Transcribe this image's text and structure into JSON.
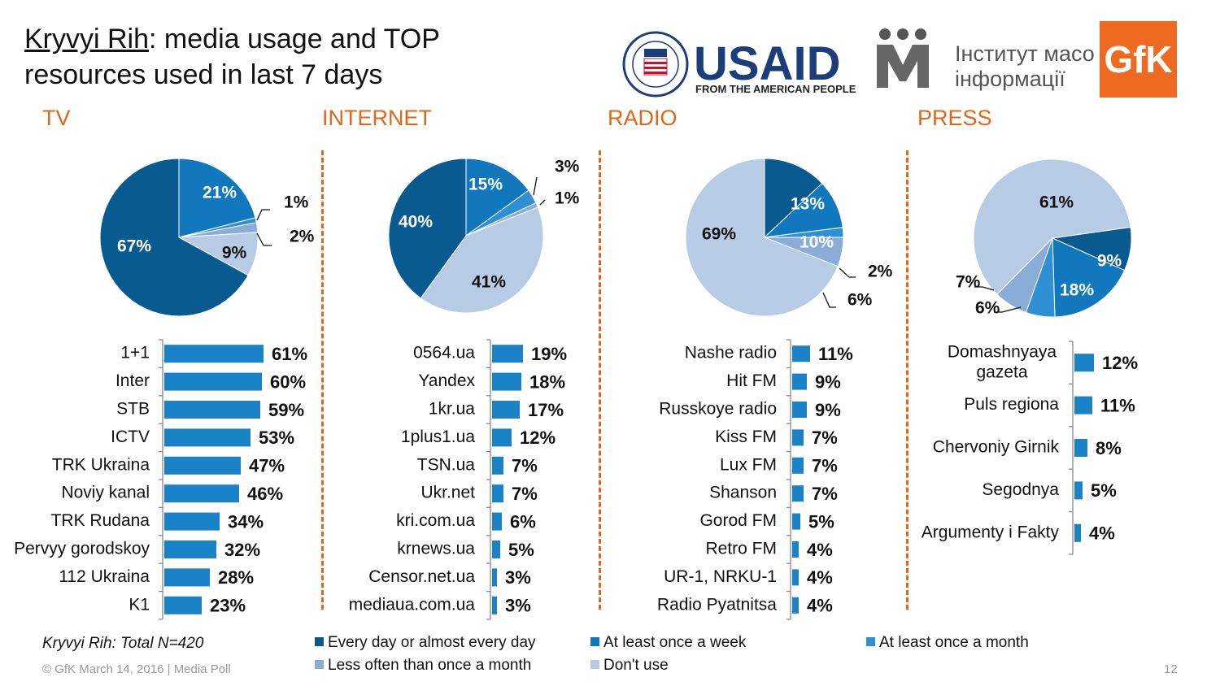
{
  "title": {
    "underlined": "Kryvyi Rih",
    "rest": ": media usage and TOP",
    "line2": "resources used in last 7 days"
  },
  "logos": {
    "usaid_main": "USAID",
    "usaid_sub": "FROM THE AMERICAN PEOPLE",
    "imi_line1": "Інститут масової",
    "imi_line2": "інформації",
    "gfk": "GfK"
  },
  "colors": {
    "every_day": "#0a5a92",
    "week": "#1278be",
    "month": "#2e8fd2",
    "less_often": "#8aacd6",
    "dont_use": "#b8cbe4",
    "bar": "#1a82c6",
    "accent": "#e0661a"
  },
  "legend": [
    {
      "label": "Every day or almost every day",
      "color": "#0a5a92"
    },
    {
      "label": "At least once a week",
      "color": "#1278be"
    },
    {
      "label": "At least once a month",
      "color": "#2e8fd2"
    },
    {
      "label": "Less often than once a month",
      "color": "#8aacd6"
    },
    {
      "label": "Don't use",
      "color": "#b8cbe4"
    }
  ],
  "footnote": "Kryvyi Rih: Total N=420",
  "footer": "© GfK March 14, 2016 | Media Poll",
  "page_number": "12",
  "chart_data": [
    {
      "type": "pie",
      "title": "TV",
      "categories": [
        "Every day or almost every day",
        "At least once a week",
        "At least once a month",
        "Less often than once a month",
        "Don't use"
      ],
      "values": [
        67,
        21,
        1,
        2,
        9
      ],
      "labels": [
        "67%",
        "21%",
        "1%",
        "2%",
        "9%"
      ]
    },
    {
      "type": "bar",
      "title": "TV",
      "categories": [
        "1+1",
        "Inter",
        "STB",
        "ICTV",
        "TRK Ukraina",
        "Noviy kanal",
        "TRK Rudana",
        "Pervyy gorodskoy",
        "112 Ukraina",
        "K1"
      ],
      "values": [
        61,
        60,
        59,
        53,
        47,
        46,
        34,
        32,
        28,
        23
      ],
      "labels": [
        "61%",
        "60%",
        "59%",
        "53%",
        "47%",
        "46%",
        "34%",
        "32%",
        "28%",
        "23%"
      ]
    },
    {
      "type": "pie",
      "title": "INTERNET",
      "categories": [
        "Every day or almost every day",
        "At least once a week",
        "At least once a month",
        "Less often than once a month",
        "Don't use"
      ],
      "values": [
        40,
        15,
        3,
        1,
        41
      ],
      "labels": [
        "40%",
        "15%",
        "3%",
        "1%",
        "41%"
      ]
    },
    {
      "type": "bar",
      "title": "INTERNET",
      "categories": [
        "0564.ua",
        "Yandex",
        "1kr.ua",
        "1plus1.ua",
        "TSN.ua",
        "Ukr.net",
        "kri.com.ua",
        "krnews.ua",
        "Censor.net.ua",
        "mediaua.com.ua"
      ],
      "values": [
        19,
        18,
        17,
        12,
        7,
        7,
        6,
        5,
        3,
        3
      ],
      "labels": [
        "19%",
        "18%",
        "17%",
        "12%",
        "7%",
        "7%",
        "6%",
        "5%",
        "3%",
        "3%"
      ]
    },
    {
      "type": "pie",
      "title": "RADIO",
      "categories": [
        "Every day or almost every day",
        "At least once a week",
        "At least once a month",
        "Less often than once a month",
        "Don't use"
      ],
      "values": [
        13,
        10,
        2,
        6,
        69
      ],
      "labels": [
        "13%",
        "10%",
        "2%",
        "6%",
        "69%"
      ]
    },
    {
      "type": "bar",
      "title": "RADIO",
      "categories": [
        "Nashe radio",
        "Hit FM",
        "Russkoye radio",
        "Kiss FM",
        "Lux FM",
        "Shanson",
        "Gorod FM",
        "Retro FM",
        "UR-1, NRKU-1",
        "Radio Pyatnitsa"
      ],
      "values": [
        11,
        9,
        9,
        7,
        7,
        7,
        5,
        4,
        4,
        4
      ],
      "labels": [
        "11%",
        "9%",
        "9%",
        "7%",
        "7%",
        "7%",
        "5%",
        "4%",
        "4%",
        "4%"
      ]
    },
    {
      "type": "pie",
      "title": "PRESS",
      "categories": [
        "Every day or almost every day",
        "At least once a week",
        "At least once a month",
        "Less often than once a month",
        "Don't use"
      ],
      "values": [
        9,
        18,
        6,
        7,
        61
      ],
      "labels": [
        "9%",
        "18%",
        "6%",
        "7%",
        "61%"
      ]
    },
    {
      "type": "bar",
      "title": "PRESS",
      "categories": [
        "Domashnyaya gazeta",
        "Puls regiona",
        "Chervoniy Girnik",
        "Segodnya",
        "Argumenty i Fakty"
      ],
      "values": [
        12,
        11,
        8,
        5,
        4
      ],
      "labels": [
        "12%",
        "11%",
        "8%",
        "5%",
        "4%"
      ]
    }
  ]
}
